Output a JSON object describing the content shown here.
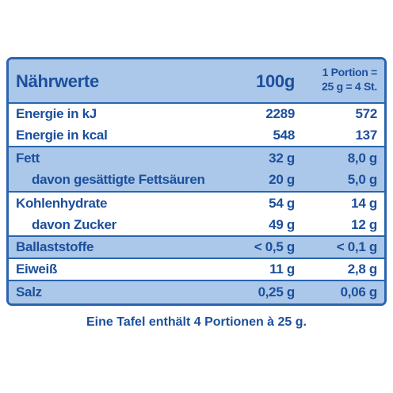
{
  "table": {
    "header": {
      "label": "Nährwerte",
      "per_100g": "100g",
      "per_portion": [
        "1 Portion =",
        "25 g = 4 St."
      ]
    },
    "rows": [
      [
        "Energie in kJ",
        "2289",
        "572"
      ],
      [
        "Energie in kcal",
        "548",
        "137"
      ],
      [
        "Fett",
        "32 g",
        "8,0 g"
      ],
      [
        "davon gesättigte Fettsäuren",
        "20 g",
        "5,0 g"
      ],
      [
        "Kohlenhydrate",
        "54 g",
        "14 g"
      ],
      [
        "davon Zucker",
        "49 g",
        "12 g"
      ],
      [
        "Ballaststoffe",
        "< 0,5 g",
        "< 0,1 g"
      ],
      [
        "Eiweiß",
        "11 g",
        "2,8 g"
      ],
      [
        "Salz",
        "0,25 g",
        "0,06 g"
      ]
    ]
  },
  "footer": "Eine Tafel enthält 4 Portionen à 25 g."
}
